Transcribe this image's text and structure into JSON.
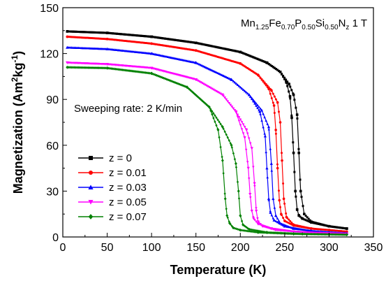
{
  "chart_data": {
    "type": "line",
    "title": "",
    "xlabel": "Temperature (K)",
    "ylabel_main": "Magnetization (Am",
    "ylabel_sup1": "2",
    "ylabel_mid": "kg",
    "ylabel_sup2": "-1",
    "ylabel_end": ")",
    "xlim": [
      0,
      350
    ],
    "ylim": [
      0,
      150
    ],
    "xticks": [
      "0",
      "50",
      "100",
      "150",
      "200",
      "250",
      "300",
      "350"
    ],
    "yticks": [
      "0",
      "30",
      "60",
      "90",
      "120",
      "150"
    ],
    "grid": false,
    "legend_position": "lower-left",
    "annotation": {
      "sweep": "Sweeping rate: 2 K/min",
      "formula": {
        "p1": "Mn",
        "s1": "1.25",
        "p2": "Fe",
        "s2": "0.70",
        "p3": "P",
        "s3": "0.50",
        "p4": "Si",
        "s4": "0.50",
        "p5": "N",
        "s5": "z",
        "p6": " 1 T"
      }
    },
    "series": [
      {
        "name": "z = 0",
        "color": "#000000",
        "marker": "square",
        "x": [
          5,
          50,
          100,
          150,
          200,
          230,
          245,
          252,
          256,
          258,
          260,
          262,
          264,
          266,
          270,
          280,
          300,
          320
        ],
        "y": [
          134.5,
          133.5,
          131,
          127,
          121,
          114,
          108,
          101,
          92,
          78,
          55,
          30,
          18,
          14,
          12,
          9.5,
          7,
          5.5
        ],
        "x_warm": [
          5,
          50,
          100,
          150,
          200,
          230,
          245,
          255,
          260,
          264,
          266,
          268,
          272,
          280,
          300,
          320
        ],
        "y_warm": [
          134.5,
          133.5,
          131,
          127,
          121,
          114,
          108,
          100,
          93,
          80,
          55,
          30,
          15,
          10,
          7,
          5.5
        ]
      },
      {
        "name": "z = 0.01",
        "color": "#ff0000",
        "marker": "circle",
        "x": [
          5,
          50,
          100,
          150,
          200,
          220,
          232,
          238,
          240,
          242,
          244,
          246,
          250,
          260,
          280,
          300,
          320
        ],
        "y": [
          131,
          129.5,
          126.5,
          122,
          113.5,
          106,
          97,
          86,
          70,
          45,
          24,
          15,
          10.5,
          7.5,
          5.5,
          4.5,
          3.5
        ],
        "x_warm": [
          5,
          50,
          100,
          150,
          200,
          220,
          235,
          242,
          245,
          247,
          249,
          252,
          260,
          280,
          300,
          320
        ],
        "y_warm": [
          131,
          129.5,
          126.5,
          122,
          113.5,
          106,
          96,
          88,
          75,
          50,
          25,
          13,
          8,
          5.5,
          4.5,
          3.5
        ]
      },
      {
        "name": "z = 0.03",
        "color": "#0000ff",
        "marker": "triangle-up",
        "x": [
          5,
          50,
          100,
          150,
          190,
          210,
          222,
          228,
          230,
          232,
          234,
          238,
          250,
          280,
          320
        ],
        "y": [
          124,
          123,
          120,
          114,
          103,
          93,
          82,
          66,
          45,
          25,
          16,
          11,
          7,
          4,
          2.5
        ],
        "x_warm": [
          5,
          50,
          100,
          150,
          190,
          210,
          224,
          232,
          235,
          237,
          240,
          245,
          260,
          290,
          320
        ],
        "y_warm": [
          124,
          123,
          120,
          114,
          103,
          93,
          83,
          72,
          48,
          25,
          14,
          9,
          5.5,
          3.5,
          2.5
        ]
      },
      {
        "name": "z = 0.05",
        "color": "#ff00ff",
        "marker": "triangle-down",
        "x": [
          5,
          50,
          100,
          150,
          180,
          195,
          205,
          209,
          211,
          213,
          215,
          220,
          235,
          260,
          290,
          320
        ],
        "y": [
          114,
          113,
          110.5,
          103,
          93,
          82,
          65,
          45,
          28,
          17,
          12,
          8.5,
          5.5,
          3.5,
          2.5,
          2
        ],
        "x_warm": [
          5,
          50,
          100,
          150,
          180,
          195,
          207,
          213,
          216,
          218,
          220,
          225,
          240,
          270,
          320
        ],
        "y_warm": [
          114,
          113,
          110.5,
          103,
          93,
          82,
          70,
          58,
          35,
          17,
          10,
          7,
          4.5,
          3,
          2
        ]
      },
      {
        "name": "z = 0.07",
        "color": "#008000",
        "marker": "diamond",
        "x": [
          5,
          50,
          100,
          140,
          165,
          175,
          180,
          183,
          185,
          188,
          192,
          200,
          220,
          260,
          320
        ],
        "y": [
          111,
          110.5,
          107,
          98,
          85,
          70,
          50,
          25,
          14,
          9,
          6,
          4.5,
          3,
          2,
          1.5
        ],
        "x_warm": [
          5,
          50,
          100,
          140,
          165,
          180,
          190,
          195,
          198,
          200,
          203,
          210,
          230,
          270,
          320
        ],
        "y_warm": [
          111,
          110.5,
          107,
          98,
          85,
          72,
          60,
          48,
          30,
          14,
          8,
          5,
          3,
          2,
          1.5
        ]
      }
    ]
  }
}
